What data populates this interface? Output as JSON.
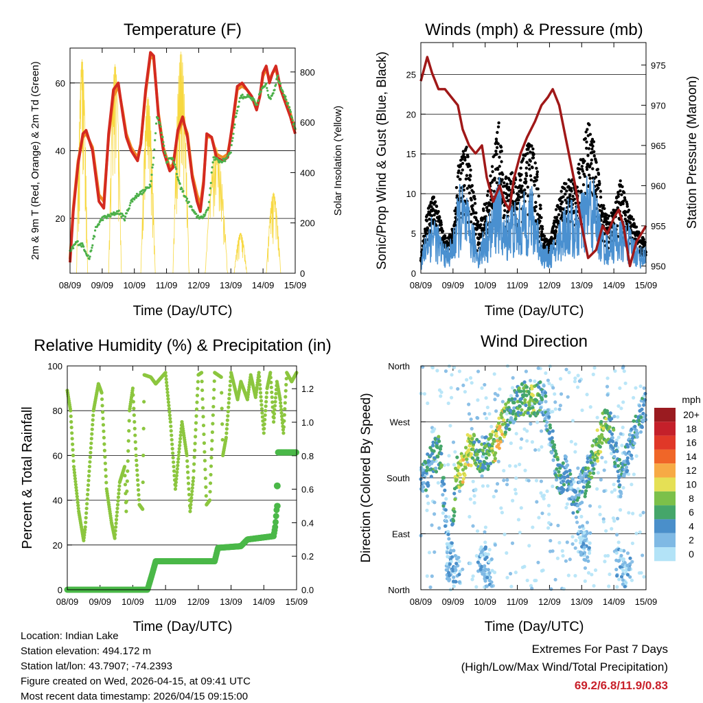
{
  "footer": {
    "location": "Location: Indian Lake",
    "elevation": "Station elevation: 494.172 m",
    "latlon": "Station lat/lon: 43.7907; -74.2393",
    "created": "Figure created on Wed, 2026-04-15, at 09:41 UTC",
    "recent": "Most recent data timestamp: 2026/04/15 09:15:00",
    "extremes_title": "Extremes For Past 7 Days",
    "extremes_sub": "(High/Low/Max Wind/Total Precipitation)",
    "extremes_values": "69.2/6.8/11.9/0.83"
  },
  "colors": {
    "temp2m": "#d42a20",
    "temp9m": "#f08a24",
    "dew": "#4cb04a",
    "solar": "#f7d840",
    "gust": "#000000",
    "sonic": "#4a90d0",
    "pressure": "#a01818",
    "rh": "#8cc63f",
    "precip": "#4ab848"
  },
  "chart_data": [
    {
      "type": "line",
      "title": "Temperature (F)",
      "xlabel": "Time (Day/UTC)",
      "ylabel": "2m & 9m T (Red, Orange) & 2m Td (Green)",
      "ylabel_right": "Solar Insolation (Yellow)",
      "x_ticks": [
        "08/09",
        "09/09",
        "10/09",
        "11/09",
        "12/09",
        "13/09",
        "14/09",
        "15/09"
      ],
      "ylim": [
        3.8,
        70.3
      ],
      "y_ticks": [
        20,
        40,
        60
      ],
      "ylim_right": [
        0,
        895
      ],
      "y_ticks_right": [
        0,
        200,
        400,
        600,
        800
      ],
      "series": [
        {
          "name": "2m T",
          "x": [
            0,
            0.1,
            0.25,
            0.4,
            0.5,
            0.7,
            0.9,
            1.05,
            1.2,
            1.35,
            1.5,
            1.65,
            1.75,
            1.9,
            2.1,
            2.2,
            2.35,
            2.5,
            2.6,
            2.75,
            2.9,
            3.1,
            3.2,
            3.35,
            3.5,
            3.65,
            3.8,
            3.95,
            4.05,
            4.15,
            4.25,
            4.4,
            4.55,
            4.75,
            4.9,
            5.05,
            5.2,
            5.35,
            5.5,
            5.65,
            5.8,
            5.9,
            6.0,
            6.1,
            6.2,
            6.3,
            6.4,
            6.55,
            6.7,
            6.85,
            7.0
          ],
          "y": [
            7,
            22,
            36,
            45,
            46,
            40,
            25,
            23,
            45,
            58,
            60,
            50,
            44,
            40,
            37,
            42,
            58,
            69,
            68,
            50,
            40,
            34,
            35,
            46,
            50,
            44,
            32,
            25,
            22,
            30,
            45,
            44,
            38,
            37,
            38,
            48,
            59,
            60,
            58,
            56,
            52,
            56,
            63,
            65,
            60,
            63,
            65,
            58,
            54,
            50,
            45
          ]
        },
        {
          "name": "9m T",
          "x": [
            0,
            0.1,
            0.25,
            0.4,
            0.5,
            0.7,
            0.9,
            1.05,
            1.2,
            1.35,
            1.5,
            1.65,
            1.75,
            1.9,
            2.1,
            2.2,
            2.35,
            2.5,
            2.6,
            2.75,
            2.9,
            3.1,
            3.2,
            3.35,
            3.5,
            3.65,
            3.8,
            3.95,
            4.05,
            4.15,
            4.25,
            4.4,
            4.55,
            4.75,
            4.9,
            5.05,
            5.2,
            5.35,
            5.5,
            5.65,
            5.8,
            5.9,
            6.0,
            6.1,
            6.2,
            6.3,
            6.4,
            6.55,
            6.7,
            6.85,
            7.0
          ],
          "y": [
            8,
            23,
            37,
            44,
            45,
            41,
            27,
            25,
            44,
            56,
            59,
            51,
            45,
            41,
            38,
            42,
            57,
            68,
            67,
            51,
            41,
            35,
            36,
            45,
            49,
            45,
            33,
            27,
            24,
            31,
            44,
            44,
            39,
            38,
            39,
            47,
            58,
            59,
            58,
            56,
            53,
            56,
            62,
            64,
            61,
            63,
            64,
            58,
            55,
            51,
            46
          ]
        },
        {
          "name": "2m Td",
          "x": [
            0,
            0.2,
            0.4,
            0.6,
            0.8,
            1.0,
            1.3,
            1.5,
            1.7,
            1.9,
            2.1,
            2.3,
            2.5,
            2.6,
            2.7,
            2.8,
            3.0,
            3.2,
            3.4,
            3.6,
            3.9,
            4.1,
            4.3,
            4.45,
            4.6,
            4.8,
            5.0,
            5.15,
            5.3,
            5.5,
            5.7,
            5.8,
            5.9,
            6.1,
            6.2,
            6.35,
            6.45,
            6.6,
            6.8,
            7.0
          ],
          "y": [
            10,
            13,
            12,
            8,
            17,
            20,
            21,
            22,
            20,
            25,
            27,
            28,
            30,
            38,
            50,
            48,
            37,
            38,
            30,
            26,
            21,
            20,
            23,
            38,
            37,
            37,
            40,
            50,
            56,
            56,
            55,
            53,
            57,
            60,
            55,
            58,
            62,
            58,
            53,
            46
          ]
        },
        {
          "name": "Solar",
          "peaks": [
            {
              "start": 0.2,
              "end": 0.55,
              "peak": 850
            },
            {
              "start": 1.2,
              "end": 1.6,
              "peak": 830
            },
            {
              "start": 2.2,
              "end": 2.65,
              "peak": 700
            },
            {
              "start": 3.2,
              "end": 3.7,
              "peak": 880
            },
            {
              "start": 4.2,
              "end": 4.9,
              "peak": 500
            },
            {
              "start": 5.1,
              "end": 5.5,
              "peak": 160
            },
            {
              "start": 6.1,
              "end": 6.55,
              "peak": 320
            }
          ]
        }
      ]
    },
    {
      "type": "line",
      "title": "Winds (mph) & Pressure (mb)",
      "xlabel": "Time (Day/UTC)",
      "ylabel": "Sonic/Prop Wind & Gust (Blue, Black)",
      "ylabel_right": "Station Pressure (Maroon)",
      "x_ticks": [
        "08/09",
        "09/09",
        "10/09",
        "11/09",
        "12/09",
        "13/09",
        "14/09",
        "15/09"
      ],
      "ylim": [
        0,
        29
      ],
      "y_ticks": [
        0,
        5,
        10,
        15,
        20,
        25
      ],
      "ylim_right": [
        949.1,
        977.8
      ],
      "y_ticks_right": [
        950,
        955,
        960,
        965,
        970,
        975
      ],
      "wind": {
        "x": [
          0,
          0.2,
          0.4,
          0.6,
          0.8,
          1.0,
          1.2,
          1.4,
          1.6,
          1.8,
          2.0,
          2.2,
          2.4,
          2.6,
          2.8,
          3.0,
          3.2,
          3.4,
          3.6,
          3.8,
          4.0,
          4.2,
          4.4,
          4.6,
          4.8,
          5.0,
          5.2,
          5.4,
          5.6,
          5.8,
          6.0,
          6.2,
          6.4,
          6.6,
          6.8,
          7.0
        ],
        "sonic": [
          1,
          4,
          5,
          3,
          2,
          3,
          7,
          6,
          4,
          2,
          4,
          5,
          8,
          4,
          6,
          5,
          6,
          7,
          5,
          2,
          2,
          3,
          5,
          6,
          5,
          6,
          8,
          7,
          4,
          3,
          4,
          4,
          4,
          3,
          2,
          2
        ],
        "gust": [
          2,
          8,
          10,
          7,
          4,
          6,
          15,
          17,
          12,
          6,
          9,
          13,
          20,
          12,
          13,
          12,
          15,
          17,
          14,
          5,
          4,
          8,
          11,
          12,
          12,
          15,
          20,
          17,
          10,
          7,
          8,
          12,
          9,
          7,
          5,
          4
        ]
      },
      "pressure": {
        "x": [
          0,
          0.2,
          0.35,
          0.55,
          0.75,
          0.95,
          1.15,
          1.3,
          1.5,
          1.7,
          1.9,
          2.05,
          2.25,
          2.45,
          2.6,
          2.75,
          2.9,
          3.1,
          3.3,
          3.55,
          3.75,
          3.95,
          4.1,
          4.3,
          4.55,
          4.8,
          5.0,
          5.2,
          5.45,
          5.65,
          5.8,
          6.0,
          6.15,
          6.3,
          6.5,
          6.7,
          6.85,
          7.0
        ],
        "y": [
          973,
          976,
          974,
          972,
          972,
          971,
          970,
          967,
          965,
          964,
          965,
          961,
          958,
          960,
          958,
          957,
          961,
          964,
          966,
          968,
          970,
          971,
          972,
          970,
          965,
          960,
          955,
          951,
          952,
          955,
          954,
          956,
          957,
          955,
          950,
          953,
          954,
          955
        ]
      }
    },
    {
      "type": "line",
      "title": "Relative Humidity (%) & Precipitation (in)",
      "xlabel": "Time (Day/UTC)",
      "ylabel": "Percent & Total Rainfall",
      "x_ticks": [
        "08/09",
        "09/09",
        "10/09",
        "11/09",
        "12/09",
        "13/09",
        "14/09",
        "15/09"
      ],
      "ylim": [
        0,
        100
      ],
      "y_ticks": [
        0,
        20,
        40,
        60,
        80,
        100
      ],
      "ylim_right": [
        0,
        1.336
      ],
      "y_ticks_right": [
        "0.0",
        "0.2",
        "0.4",
        "0.6",
        "0.8",
        "1.0",
        "1.2"
      ],
      "series": [
        {
          "name": "RH",
          "x": [
            0,
            0.1,
            0.2,
            0.35,
            0.5,
            0.55,
            0.8,
            0.95,
            1.05,
            1.2,
            1.35,
            1.45,
            1.6,
            1.75,
            1.8,
            1.9,
            2.0,
            2.1,
            2.2,
            2.3,
            2.35,
            2.55,
            2.7,
            3.0,
            3.15,
            3.3,
            3.4,
            3.5,
            3.65,
            3.75,
            3.85,
            4.0,
            4.1,
            4.25,
            4.35,
            4.5,
            4.7,
            4.75,
            4.85,
            5.0,
            5.2,
            5.3,
            5.5,
            5.6,
            5.75,
            5.85,
            6.0,
            6.1,
            6.2,
            6.3,
            6.4,
            6.5,
            6.6,
            6.7,
            6.85,
            7.0
          ],
          "y": [
            89,
            80,
            55,
            35,
            22,
            28,
            80,
            92,
            88,
            45,
            30,
            23,
            48,
            55,
            35,
            80,
            90,
            60,
            38,
            36,
            96,
            95,
            92,
            97,
            75,
            45,
            60,
            75,
            60,
            35,
            50,
            96,
            97,
            38,
            40,
            97,
            95,
            60,
            68,
            97,
            85,
            93,
            85,
            96,
            86,
            97,
            70,
            90,
            97,
            75,
            93,
            85,
            70,
            97,
            93,
            97
          ]
        },
        {
          "name": "Precip",
          "x": [
            0,
            2.45,
            2.6,
            2.7,
            4.5,
            4.6,
            5.3,
            5.5,
            6.3,
            6.35,
            6.4,
            6.42,
            7.0
          ],
          "y": [
            0,
            0,
            0.1,
            0.17,
            0.17,
            0.25,
            0.26,
            0.3,
            0.32,
            0.38,
            0.5,
            0.82,
            0.82
          ]
        }
      ]
    },
    {
      "type": "scatter",
      "title": "Wind Direction",
      "xlabel": "Time (Day/UTC)",
      "ylabel": "Direction (Colored By Speed)",
      "x_ticks": [
        "08/09",
        "09/09",
        "10/09",
        "11/09",
        "12/09",
        "13/09",
        "14/09",
        "15/09"
      ],
      "y_ticks": [
        "North",
        "East",
        "South",
        "West",
        "North"
      ],
      "ylim": [
        0,
        360
      ],
      "anchors": {
        "x": [
          0.1,
          0.2,
          0.4,
          0.6,
          0.9,
          1.1,
          1.3,
          1.5,
          1.8,
          2.1,
          2.3,
          2.5,
          2.8,
          3.0,
          3.3,
          3.5,
          3.8,
          4.3,
          4.5,
          4.8,
          5.1,
          5.3,
          5.5,
          5.7,
          5.9,
          6.2,
          6.5,
          6.8,
          7.0
        ],
        "dir": [
          180,
          190,
          215,
          220,
          50,
          185,
          195,
          230,
          215,
          220,
          235,
          260,
          290,
          300,
          310,
          300,
          310,
          175,
          190,
          140,
          175,
          200,
          235,
          265,
          260,
          175,
          230,
          270,
          300
        ],
        "speed": [
          3,
          4,
          5,
          6,
          1,
          8,
          10,
          9,
          6,
          6,
          9,
          10,
          4,
          5,
          7,
          8,
          3,
          5,
          4,
          3,
          4,
          6,
          8,
          8,
          5,
          4,
          3,
          4,
          2
        ]
      },
      "legend": {
        "title": "mph",
        "labels": [
          "20+",
          "18",
          "16",
          "14",
          "12",
          "10",
          "8",
          "6",
          "4",
          "2",
          "0"
        ],
        "colors": [
          "#9a1b20",
          "#c4202a",
          "#e03828",
          "#f06628",
          "#f7aa45",
          "#e5e055",
          "#7cc04a",
          "#45a66a",
          "#4a8fca",
          "#7fb9e4",
          "#b3e3f7"
        ]
      }
    }
  ]
}
